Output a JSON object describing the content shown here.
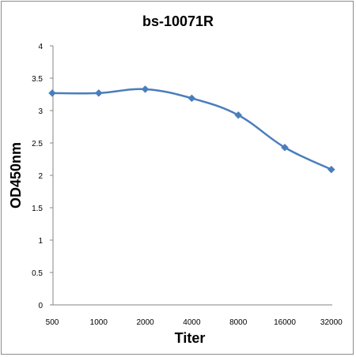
{
  "chart_data": {
    "type": "line",
    "title": "bs-10071R",
    "xlabel": "Titer",
    "ylabel": "OD450nm",
    "categories": [
      "500",
      "1000",
      "2000",
      "4000",
      "8000",
      "16000",
      "32000"
    ],
    "series": [
      {
        "values": [
          3.27,
          3.27,
          3.33,
          3.19,
          2.93,
          2.43,
          2.09
        ]
      }
    ],
    "ylim": [
      0,
      4
    ],
    "yticks": [
      "0",
      "0.5",
      "1",
      "1.5",
      "2",
      "2.5",
      "3",
      "3.5",
      "4"
    ],
    "grid": false,
    "line_color": "#4a7ebb",
    "marker": "diamond"
  }
}
